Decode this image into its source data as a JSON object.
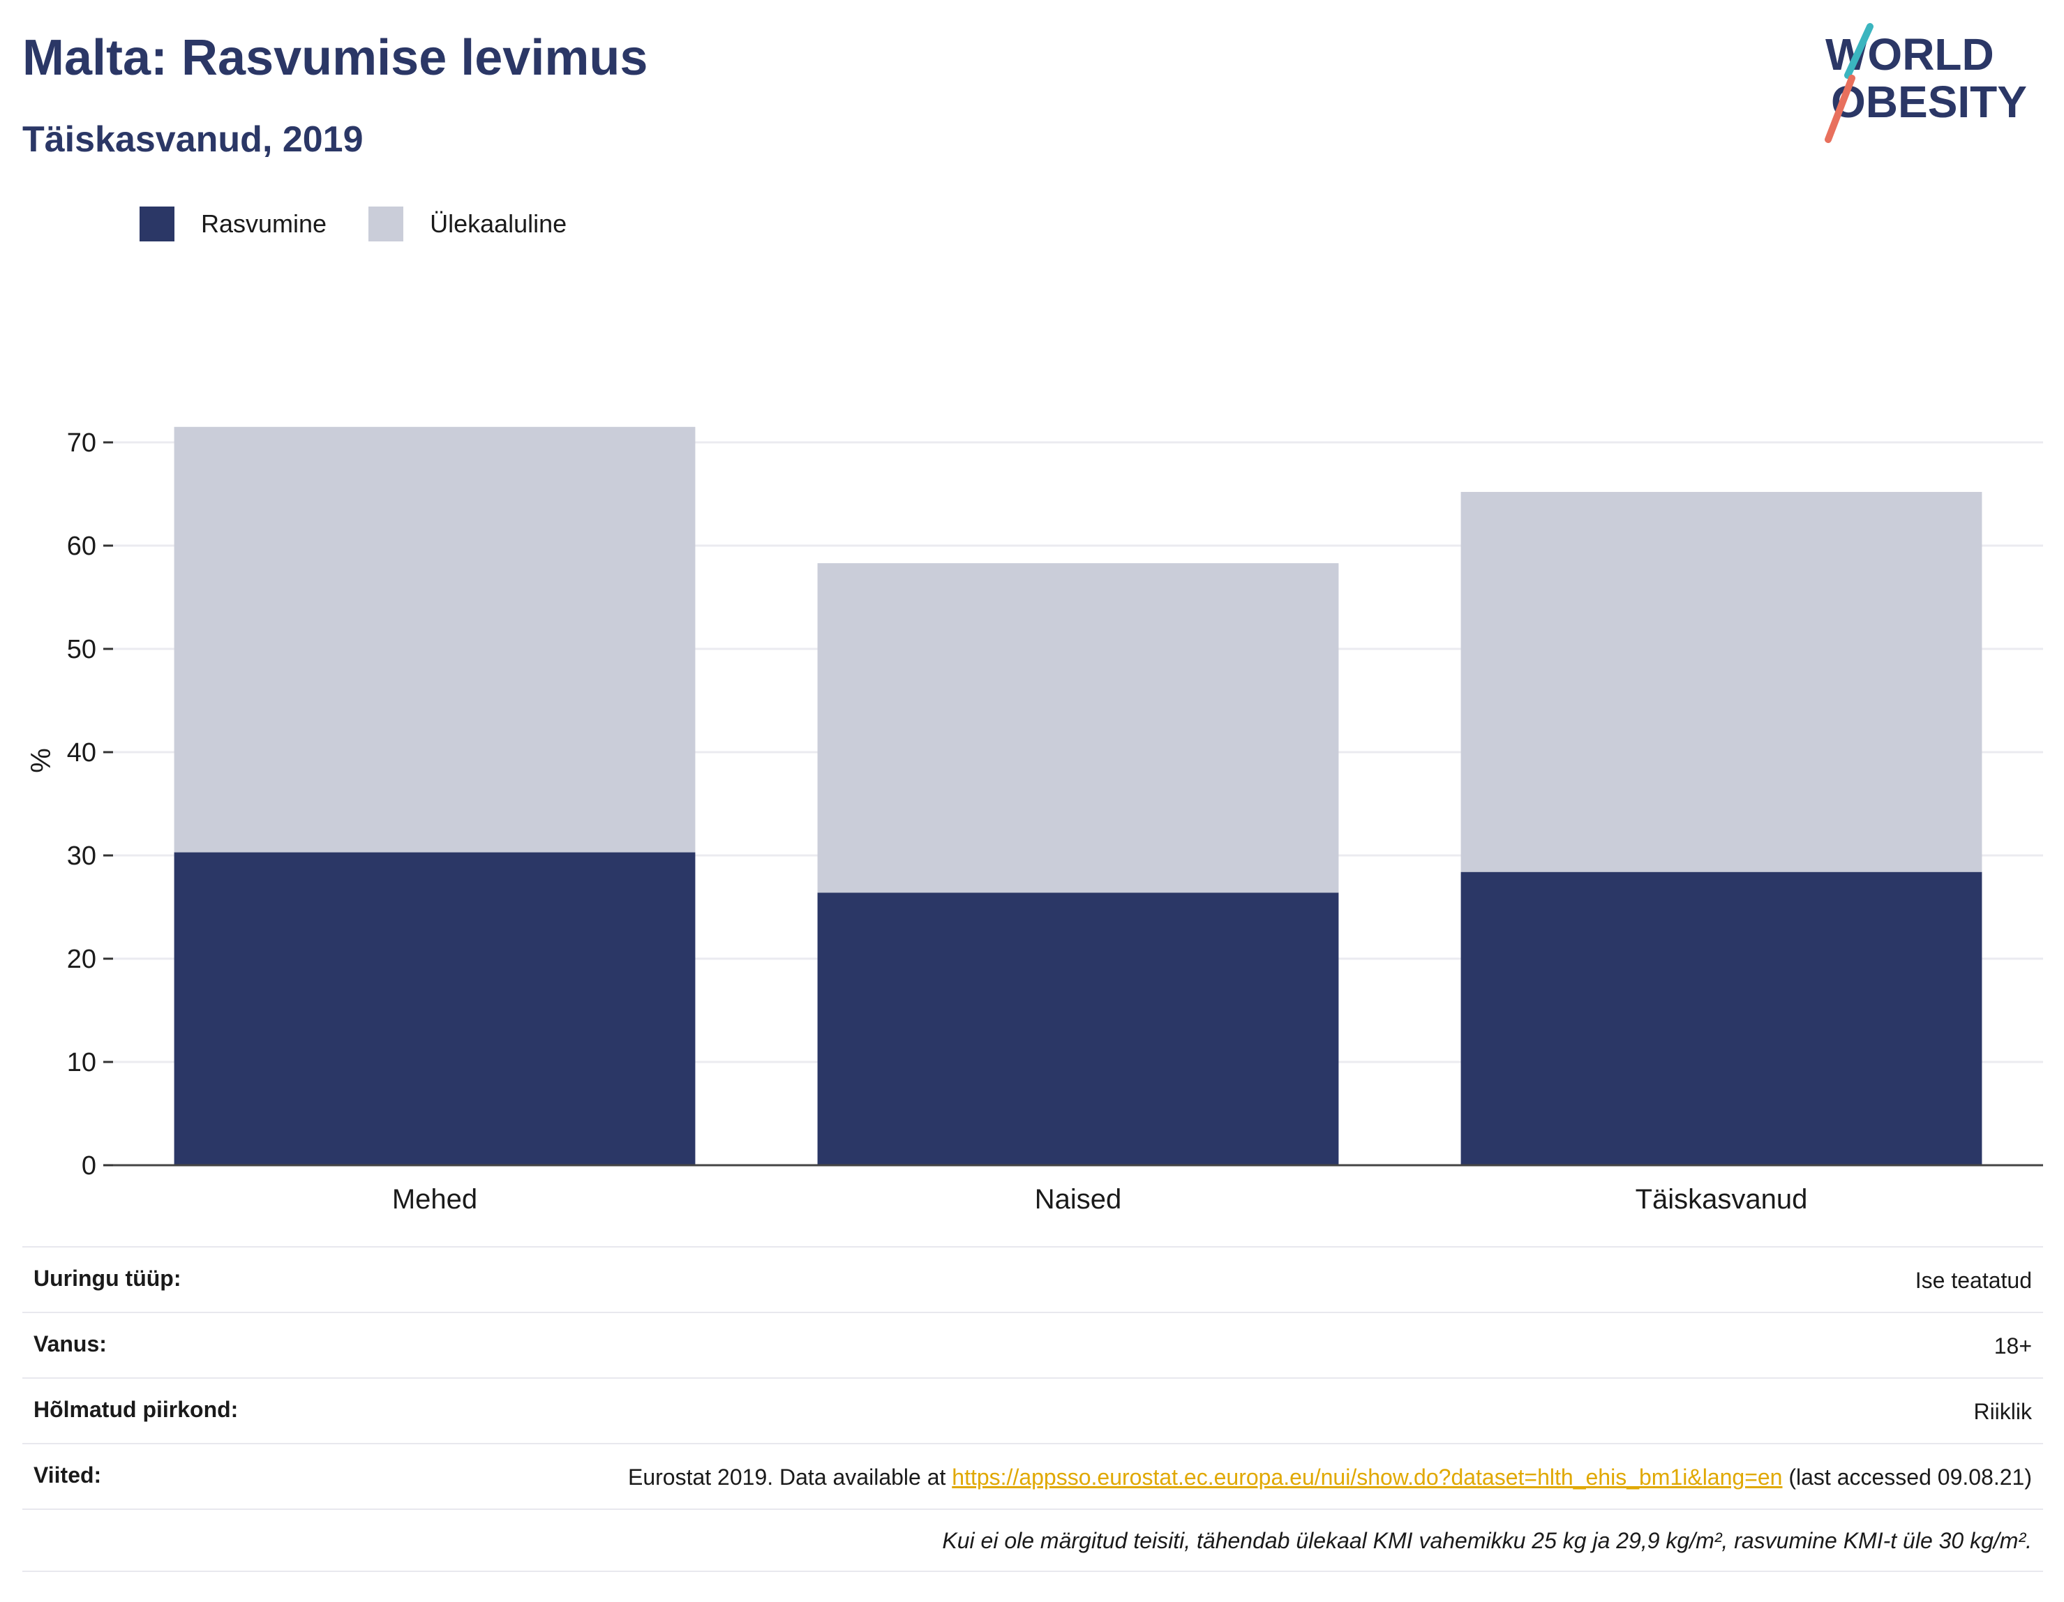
{
  "header": {
    "title": "Malta: Rasvumise levimus",
    "subtitle": "Täiskasvanud, 2019"
  },
  "logo": {
    "line1": "WORLD",
    "line2": "OBESITY",
    "icon": "world-obesity-logo"
  },
  "legend": {
    "items": [
      {
        "label": "Rasvumine",
        "color": "#2b3766"
      },
      {
        "label": "Ülekaaluline",
        "color": "#cacdd9"
      }
    ]
  },
  "chart_data": {
    "type": "bar",
    "stacked": true,
    "categories": [
      "Mehed",
      "Naised",
      "Täiskasvanud"
    ],
    "series": [
      {
        "name": "Rasvumine",
        "color": "#2b3766",
        "values": [
          30.3,
          26.4,
          28.4
        ]
      },
      {
        "name": "Ülekaaluline",
        "color": "#cacdd9",
        "values": [
          41.2,
          31.9,
          36.8
        ]
      }
    ],
    "ylabel": "%",
    "ylim": [
      0,
      75
    ],
    "yticks": [
      0,
      10,
      20,
      30,
      40,
      50,
      60,
      70
    ],
    "grid": true,
    "legend_position": "top-left"
  },
  "info": {
    "rows": [
      {
        "label": "Uuringu tüüp:",
        "value": "Ise teatatud"
      },
      {
        "label": "Vanus:",
        "value": "18+"
      },
      {
        "label": "Hõlmatud piirkond:",
        "value": "Riiklik"
      }
    ],
    "references": {
      "label": "Viited:",
      "prefix": "Eurostat 2019. Data available at ",
      "link": "https://appsso.eurostat.ec.europa.eu/nui/show.do?dataset=hlth_ehis_bm1i&lang=en",
      "suffix": " (last accessed 09.08.21)"
    },
    "note": "Kui ei ole märgitud teisiti, tähendab ülekaal KMI vahemikku 25 kg ja 29,9 kg/m², rasvumine KMI-t üle 30 kg/m²."
  }
}
